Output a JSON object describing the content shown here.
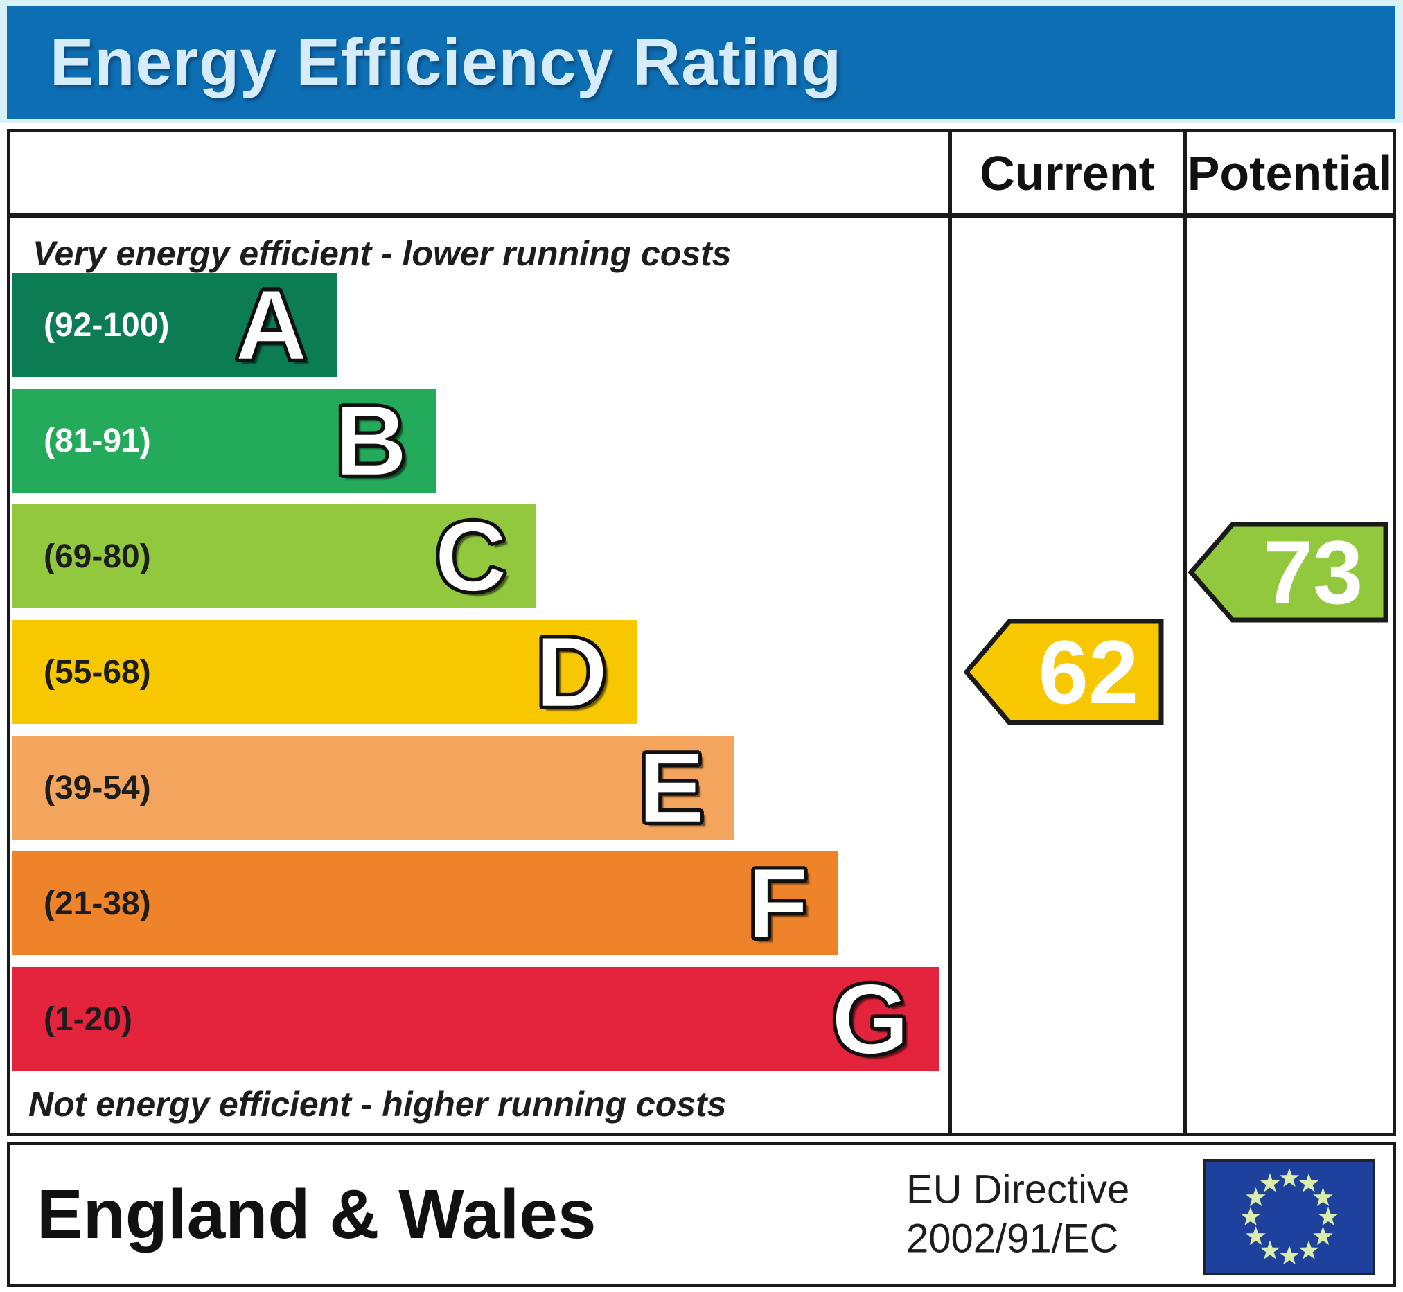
{
  "banner": {
    "title": "Energy Efficiency Rating",
    "bg": "#0e6eb3",
    "frame": "#d8f2f6",
    "text_color": "#d6ecfa"
  },
  "table_header": {
    "current": "Current",
    "potential": "Potential"
  },
  "chart_data": {
    "type": "bar",
    "title": "Energy Efficiency Rating",
    "top_note": "Very energy efficient - lower running costs",
    "bottom_note": "Not energy efficient - higher running costs",
    "columns": [
      "Current",
      "Potential"
    ],
    "bands": [
      {
        "letter": "A",
        "range": "(92-100)",
        "min": 92,
        "max": 100,
        "color": "#0c7c55",
        "range_color": "#ffffff",
        "width_pct": 34.8
      },
      {
        "letter": "B",
        "range": "(81-91)",
        "min": 81,
        "max": 91,
        "color": "#24aa5b",
        "range_color": "#ffffff",
        "width_pct": 45.5
      },
      {
        "letter": "C",
        "range": "(69-80)",
        "min": 69,
        "max": 80,
        "color": "#92c83e",
        "range_color": "#1d1d1d",
        "width_pct": 56.2
      },
      {
        "letter": "D",
        "range": "(55-68)",
        "min": 55,
        "max": 68,
        "color": "#f7c700",
        "range_color": "#1d1d1d",
        "width_pct": 67.0
      },
      {
        "letter": "E",
        "range": "(39-54)",
        "min": 39,
        "max": 54,
        "color": "#f4a55d",
        "range_color": "#1d1d1d",
        "width_pct": 77.4
      },
      {
        "letter": "F",
        "range": "(21-38)",
        "min": 21,
        "max": 38,
        "color": "#ee8329",
        "range_color": "#1d1d1d",
        "width_pct": 88.5
      },
      {
        "letter": "G",
        "range": "(1-20)",
        "min": 1,
        "max": 20,
        "color": "#e3243c",
        "range_color": "#1d1d1d",
        "width_pct": 99.3
      }
    ],
    "current": {
      "value": "62",
      "band": "D",
      "band_index": 3,
      "color": "#f7c700"
    },
    "potential": {
      "value": "73",
      "band": "C",
      "band_index": 2,
      "color": "#92c83e"
    }
  },
  "footer": {
    "region": "England & Wales",
    "directive_line1": "EU Directive",
    "directive_line2": "2002/91/EC",
    "eu_flag": {
      "bg": "#1e419d",
      "star_color": "#dcecad",
      "star_count": 12
    }
  }
}
